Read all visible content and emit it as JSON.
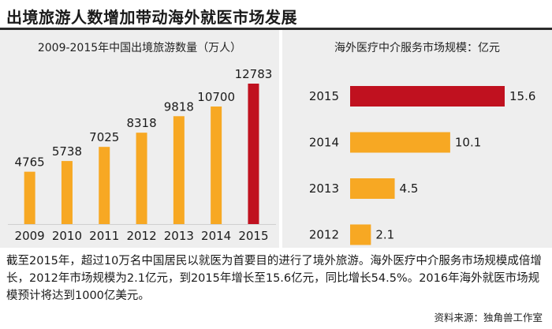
{
  "header": {
    "title": "出境旅游人数增加带动海外就医市场发展"
  },
  "colors": {
    "bar": "#f7a823",
    "highlight": "#c0111f",
    "panel_bg": "#eeeeee"
  },
  "chart_data": [
    {
      "type": "bar",
      "orientation": "vertical",
      "title": "2009-2015年中国出境旅游数量（万人）",
      "categories": [
        "2009",
        "2010",
        "2011",
        "2012",
        "2013",
        "2014",
        "2015"
      ],
      "values": [
        4765,
        5738,
        7025,
        8318,
        9818,
        10700,
        12783
      ],
      "value_labels": [
        "4765",
        "5738",
        "7025",
        "8318",
        "9818",
        "10700",
        "12783"
      ],
      "highlight_category": "2015",
      "ylim": [
        0,
        13500
      ],
      "grid": false,
      "legend": "none"
    },
    {
      "type": "bar",
      "orientation": "horizontal",
      "title": "海外医疗中介服务市场规模：亿元",
      "categories": [
        "2015",
        "2014",
        "2013",
        "2012"
      ],
      "values": [
        15.6,
        10.1,
        4.5,
        2.1
      ],
      "value_labels": [
        "15.6",
        "10.1",
        "4.5",
        "2.1"
      ],
      "highlight_category": "2015",
      "xlim": [
        0,
        15.6
      ],
      "grid": false,
      "legend": "none"
    }
  ],
  "description": "截至2015年，超过10万名中国居民以就医为首要目的进行了境外旅游。海外医疗中介服务市场规模成倍增长，2012年市场规模为2.1亿元，到2015年增长至15.6亿元，同比增长54.5%。2016年海外就医市场规模预计将达到1000亿美元。",
  "source": "资料来源：独角兽工作室"
}
